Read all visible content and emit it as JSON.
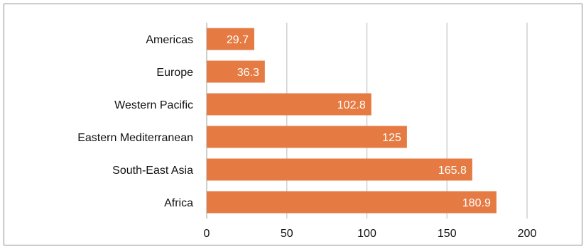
{
  "chart_data": {
    "type": "bar",
    "orientation": "horizontal",
    "categories": [
      "Americas",
      "Europe ",
      "Western Pacific",
      "Eastern Mediterranean",
      "South-East Asia",
      "Africa"
    ],
    "values": [
      29.7,
      36.3,
      102.8,
      125,
      165.8,
      180.9
    ],
    "value_labels": [
      "29.7",
      "36.3",
      "102.8",
      "125",
      "165.8",
      "180.9"
    ],
    "xlim": [
      0,
      225
    ],
    "x_ticks": [
      0,
      50,
      100,
      150,
      200
    ],
    "x_tick_labels": [
      "0",
      "50",
      "100",
      "150",
      "200"
    ],
    "grid": "vertical",
    "bar_color": "#E57B42",
    "title": "",
    "xlabel": "",
    "ylabel": ""
  }
}
